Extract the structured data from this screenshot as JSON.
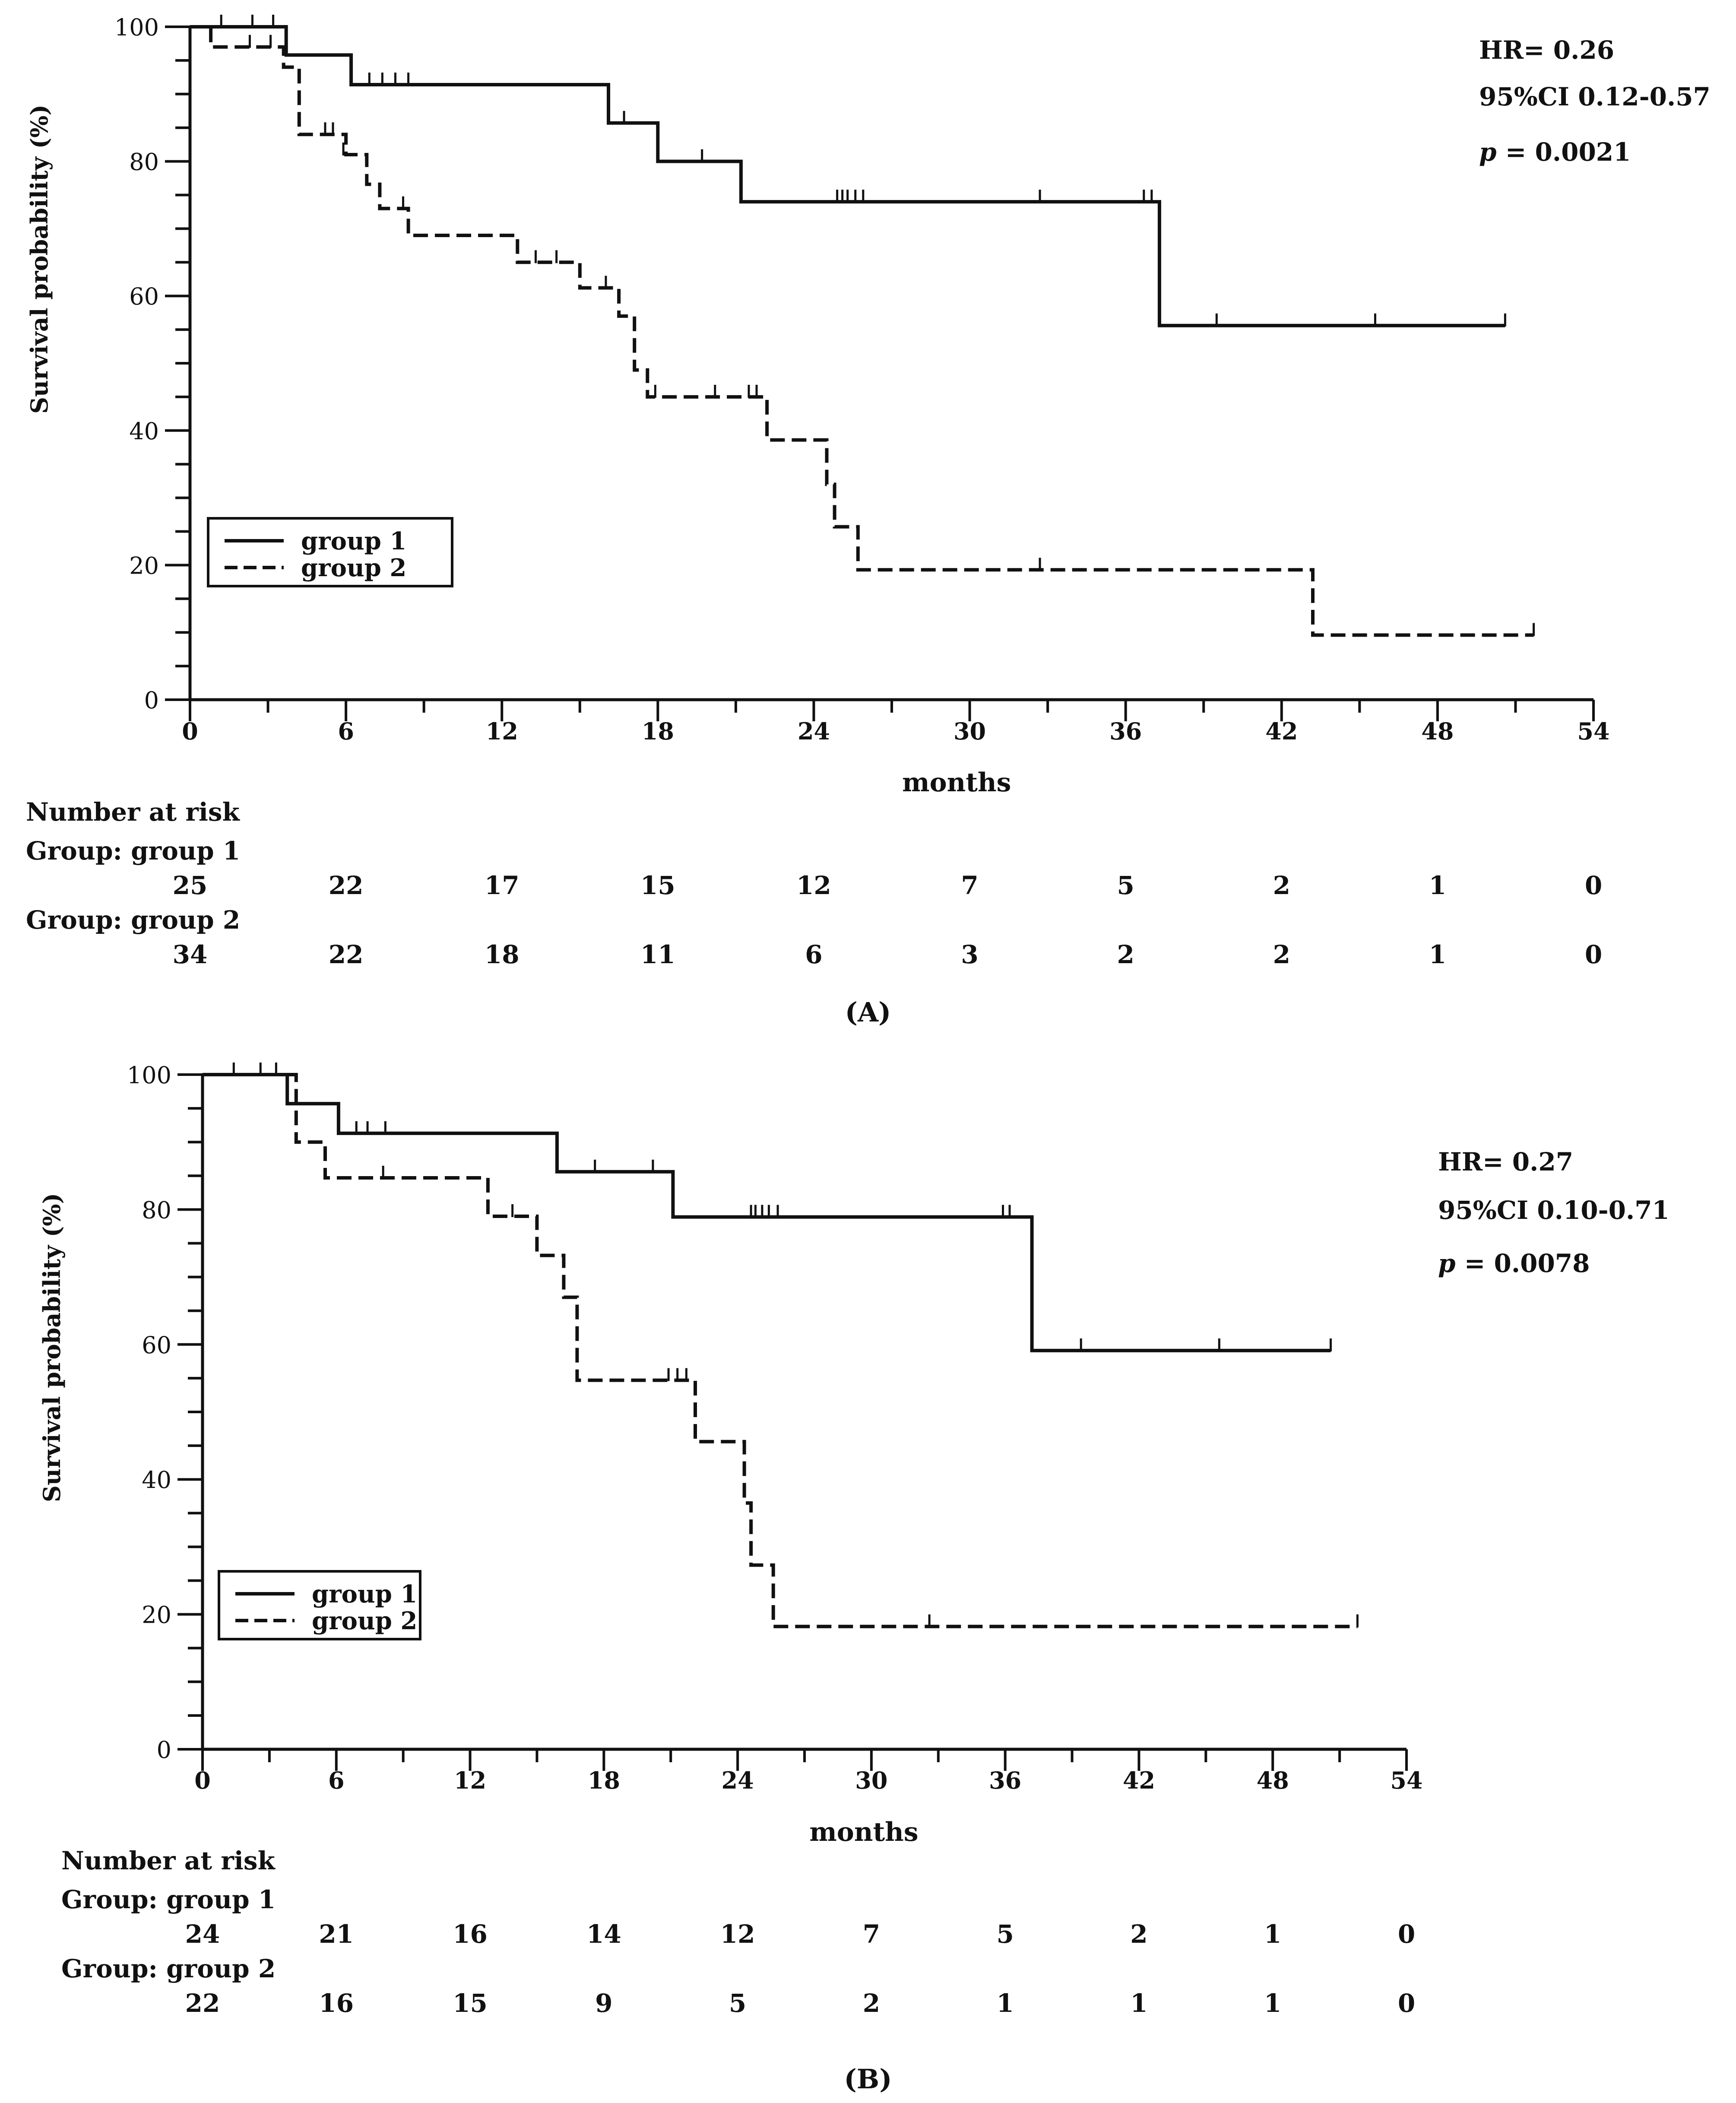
{
  "chart_data": [
    {
      "panel": "A",
      "type": "line",
      "subtype": "kaplan-meier",
      "ylabel": "Survival probability (%)",
      "xlabel": "months",
      "xlim": [
        0,
        54
      ],
      "ylim": [
        0,
        100
      ],
      "xticks": [
        "0",
        "6",
        "12",
        "18",
        "24",
        "30",
        "36",
        "42",
        "48",
        "54"
      ],
      "yticks": [
        "0",
        "20",
        "40",
        "60",
        "80",
        "100"
      ],
      "annotations": {
        "hr": "HR= 0.26",
        "ci": "95%CI 0.12-0.57",
        "p_symbol": "p",
        "p_value": "= 0.0021"
      },
      "legend": {
        "position": "bottom-left",
        "entries": [
          "group 1",
          "group 2"
        ]
      },
      "series": [
        {
          "name": "group 1",
          "style": "solid",
          "steps": [
            [
              0,
              100
            ],
            [
              3.7,
              100
            ],
            [
              3.7,
              95.8
            ],
            [
              6.2,
              95.8
            ],
            [
              6.2,
              91.4
            ],
            [
              16.1,
              91.4
            ],
            [
              16.1,
              85.7
            ],
            [
              18,
              85.7
            ],
            [
              18,
              80
            ],
            [
              21.2,
              80
            ],
            [
              21.2,
              74
            ],
            [
              37.3,
              74
            ],
            [
              37.3,
              55.6
            ],
            [
              50.6,
              55.6
            ]
          ],
          "censored": [
            [
              1.2,
              100
            ],
            [
              2.4,
              100
            ],
            [
              3.2,
              100
            ],
            [
              6.9,
              91.4
            ],
            [
              7.4,
              91.4
            ],
            [
              7.9,
              91.4
            ],
            [
              8.4,
              91.4
            ],
            [
              16.7,
              85.7
            ],
            [
              19.7,
              80
            ],
            [
              24.9,
              74
            ],
            [
              25.1,
              74
            ],
            [
              25.3,
              74
            ],
            [
              25.6,
              74
            ],
            [
              25.9,
              74
            ],
            [
              32.7,
              74
            ],
            [
              36.7,
              74
            ],
            [
              37,
              74
            ],
            [
              39.5,
              55.6
            ],
            [
              45.6,
              55.6
            ],
            [
              50.6,
              55.6
            ]
          ]
        },
        {
          "name": "group 2",
          "style": "dashed",
          "steps": [
            [
              0,
              100
            ],
            [
              0.8,
              100
            ],
            [
              0.8,
              97
            ],
            [
              3.6,
              97
            ],
            [
              3.6,
              94
            ],
            [
              4.2,
              94
            ],
            [
              4.2,
              84
            ],
            [
              6,
              84
            ],
            [
              6,
              81
            ],
            [
              6.8,
              81
            ],
            [
              6.8,
              76.6
            ],
            [
              7.3,
              76.6
            ],
            [
              7.3,
              73
            ],
            [
              8.4,
              73
            ],
            [
              8.4,
              69
            ],
            [
              12.6,
              69
            ],
            [
              12.6,
              65
            ],
            [
              15,
              65
            ],
            [
              15,
              61.2
            ],
            [
              16.5,
              61.2
            ],
            [
              16.5,
              57
            ],
            [
              17.1,
              57
            ],
            [
              17.1,
              49
            ],
            [
              17.6,
              49
            ],
            [
              17.6,
              45
            ],
            [
              22.2,
              45
            ],
            [
              22.2,
              38.6
            ],
            [
              24.5,
              38.6
            ],
            [
              24.5,
              32
            ],
            [
              24.8,
              32
            ],
            [
              24.8,
              25.7
            ],
            [
              25.7,
              25.7
            ],
            [
              25.7,
              19.3
            ],
            [
              43.2,
              19.3
            ],
            [
              43.2,
              9.6
            ],
            [
              51.7,
              9.6
            ]
          ],
          "censored": [
            [
              2.3,
              97
            ],
            [
              3.1,
              97
            ],
            [
              5.2,
              84
            ],
            [
              5.5,
              84
            ],
            [
              5.9,
              81
            ],
            [
              8.2,
              73
            ],
            [
              13.3,
              65
            ],
            [
              14.1,
              65
            ],
            [
              16,
              61.2
            ],
            [
              17.9,
              45
            ],
            [
              20.2,
              45
            ],
            [
              21.5,
              45
            ],
            [
              21.8,
              45
            ],
            [
              32.7,
              19.3
            ],
            [
              51.7,
              9.6
            ]
          ]
        }
      ],
      "risk_table": {
        "title": "Number at risk",
        "groups": [
          {
            "label": "Group: group 1",
            "values": [
              "25",
              "22",
              "17",
              "15",
              "12",
              "7",
              "5",
              "2",
              "1",
              "0"
            ]
          },
          {
            "label": "Group: group 2",
            "values": [
              "34",
              "22",
              "18",
              "11",
              "6",
              "3",
              "2",
              "2",
              "1",
              "0"
            ]
          }
        ]
      },
      "caption": "A"
    },
    {
      "panel": "B",
      "type": "line",
      "subtype": "kaplan-meier",
      "ylabel": "Survival probability (%)",
      "xlabel": "months",
      "xlim": [
        0,
        54
      ],
      "ylim": [
        0,
        100
      ],
      "xticks": [
        "0",
        "6",
        "12",
        "18",
        "24",
        "30",
        "36",
        "42",
        "48",
        "54"
      ],
      "yticks": [
        "0",
        "20",
        "40",
        "60",
        "80",
        "100"
      ],
      "annotations": {
        "hr": "HR= 0.27",
        "ci": "95%CI 0.10-0.71",
        "p_symbol": "p",
        "p_value": "= 0.0078"
      },
      "legend": {
        "position": "bottom-left",
        "entries": [
          "group 1",
          "group 2"
        ]
      },
      "series": [
        {
          "name": "group 1",
          "style": "solid",
          "steps": [
            [
              0,
              100
            ],
            [
              3.8,
              100
            ],
            [
              3.8,
              95.7
            ],
            [
              6.1,
              95.7
            ],
            [
              6.1,
              91.3
            ],
            [
              15.9,
              91.3
            ],
            [
              15.9,
              85.6
            ],
            [
              21.1,
              85.6
            ],
            [
              21.1,
              78.9
            ],
            [
              37.2,
              78.9
            ],
            [
              37.2,
              59.1
            ],
            [
              50.6,
              59.1
            ]
          ],
          "censored": [
            [
              1.4,
              100
            ],
            [
              2.6,
              100
            ],
            [
              3.3,
              100
            ],
            [
              6.9,
              91.3
            ],
            [
              7.4,
              91.3
            ],
            [
              8.2,
              91.3
            ],
            [
              17.6,
              85.6
            ],
            [
              20.2,
              85.6
            ],
            [
              24.6,
              78.9
            ],
            [
              24.8,
              78.9
            ],
            [
              25.1,
              78.9
            ],
            [
              25.4,
              78.9
            ],
            [
              25.8,
              78.9
            ],
            [
              35.9,
              78.9
            ],
            [
              36.2,
              78.9
            ],
            [
              39.4,
              59.1
            ],
            [
              45.6,
              59.1
            ],
            [
              50.6,
              59.1
            ]
          ]
        },
        {
          "name": "group 2",
          "style": "dashed",
          "steps": [
            [
              0,
              100
            ],
            [
              4.2,
              100
            ],
            [
              4.2,
              90
            ],
            [
              5.5,
              90
            ],
            [
              5.5,
              84.7
            ],
            [
              12.8,
              84.7
            ],
            [
              12.8,
              79
            ],
            [
              15,
              79
            ],
            [
              15,
              73.2
            ],
            [
              16.2,
              73.2
            ],
            [
              16.2,
              67
            ],
            [
              16.8,
              67
            ],
            [
              16.8,
              54.7
            ],
            [
              22.1,
              54.7
            ],
            [
              22.1,
              45.6
            ],
            [
              24.3,
              45.6
            ],
            [
              24.3,
              36.5
            ],
            [
              24.6,
              36.5
            ],
            [
              24.6,
              27.3
            ],
            [
              25.6,
              27.3
            ],
            [
              25.6,
              18.2
            ],
            [
              51.8,
              18.2
            ]
          ],
          "censored": [
            [
              8.1,
              84.7
            ],
            [
              13.9,
              79
            ],
            [
              20.9,
              54.7
            ],
            [
              21.3,
              54.7
            ],
            [
              21.7,
              54.7
            ],
            [
              32.6,
              18.2
            ],
            [
              51.8,
              18.2
            ]
          ]
        }
      ],
      "risk_table": {
        "title": "Number at risk",
        "groups": [
          {
            "label": "Group: group 1",
            "values": [
              "24",
              "21",
              "16",
              "14",
              "12",
              "7",
              "5",
              "2",
              "1",
              "0"
            ]
          },
          {
            "label": "Group: group 2",
            "values": [
              "22",
              "16",
              "15",
              "9",
              "5",
              "2",
              "1",
              "1",
              "1",
              "0"
            ]
          }
        ]
      },
      "caption": "B"
    }
  ]
}
